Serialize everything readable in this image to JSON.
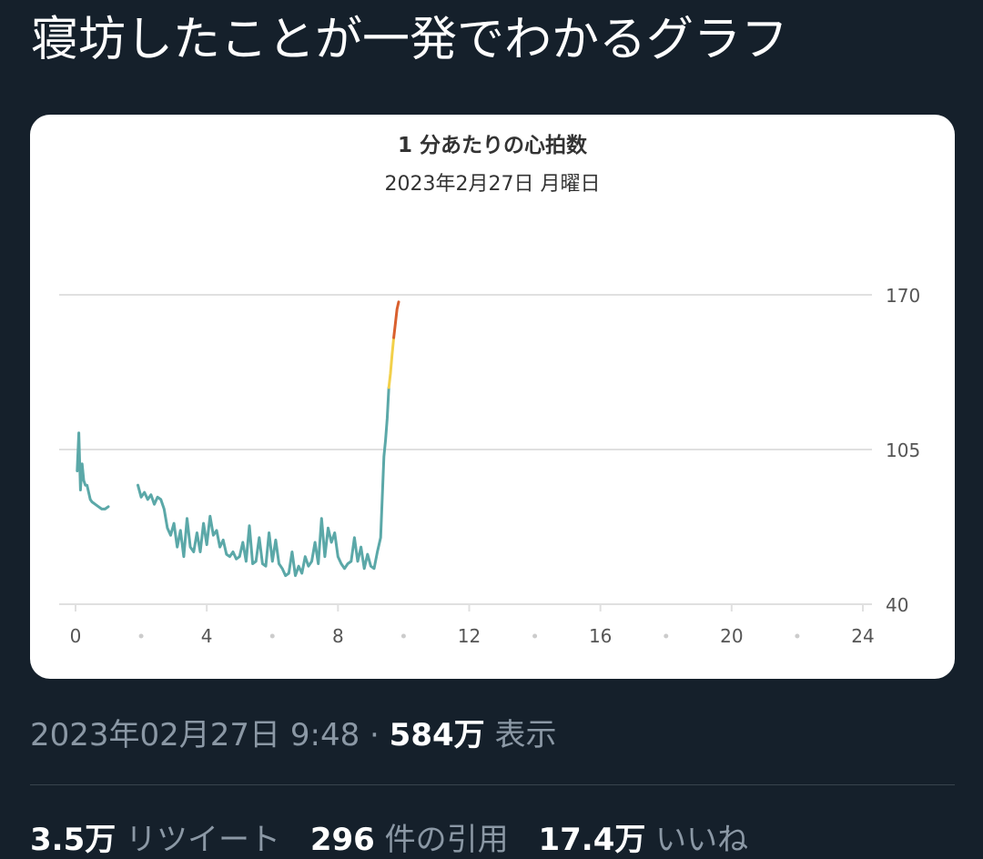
{
  "tweet": {
    "text": "寝坊したことが一発でわかるグラフ",
    "timestamp": "2023年02月27日 9:48",
    "separator": "·",
    "views_count": "584万",
    "views_label": "表示",
    "retweets_count": "3.5万",
    "retweets_label": "リツイート",
    "quotes_count": "296",
    "quotes_label": "件の引用",
    "likes_count": "17.4万",
    "likes_label": "いいね"
  },
  "chart_data": {
    "type": "line",
    "title": "1 分あたりの心拍数",
    "subtitle": "2023年2月27日 月曜日",
    "xlabel": "",
    "ylabel": "",
    "xlim": [
      0,
      24
    ],
    "ylim": [
      40,
      170
    ],
    "x_ticks": [
      "0",
      "4",
      "8",
      "12",
      "16",
      "20",
      "24"
    ],
    "y_ticks": [
      "170",
      "105",
      "40"
    ],
    "y_axis_position": "right",
    "grid": true,
    "legend": "none",
    "colors": {
      "line": "#5ba8a8",
      "elevated": "#f2d04a",
      "peak": "#d9602e",
      "grid": "#e0e0e0",
      "text": "#555555"
    },
    "series": [
      {
        "segment": 1,
        "x": [
          0.05,
          0.1,
          0.15,
          0.2,
          0.25,
          0.3,
          0.35,
          0.4,
          0.45,
          0.5,
          0.6,
          0.7,
          0.8,
          0.9,
          1.0
        ],
        "y": [
          96,
          112,
          88,
          99,
          92,
          90,
          90,
          87,
          84,
          83,
          82,
          81,
          80,
          80,
          81
        ]
      },
      {
        "segment": 2,
        "x": [
          1.9,
          2.0,
          2.1,
          2.2,
          2.3,
          2.4,
          2.5,
          2.6,
          2.7,
          2.8,
          2.9,
          3.0,
          3.1,
          3.2,
          3.3,
          3.4,
          3.5,
          3.6,
          3.7,
          3.8,
          3.9,
          4.0,
          4.1,
          4.2,
          4.3,
          4.4,
          4.5,
          4.6,
          4.7,
          4.8,
          4.9,
          5.0,
          5.1,
          5.2,
          5.3,
          5.4,
          5.5,
          5.6,
          5.7,
          5.8,
          5.9,
          6.0,
          6.1,
          6.2,
          6.3,
          6.4,
          6.5,
          6.6,
          6.7,
          6.8,
          6.9,
          7.0,
          7.1,
          7.2,
          7.3,
          7.4,
          7.5,
          7.6,
          7.7,
          7.8,
          7.9,
          8.0,
          8.1,
          8.2,
          8.3,
          8.4,
          8.5,
          8.6,
          8.7,
          8.8,
          8.9,
          9.0,
          9.1,
          9.2,
          9.3,
          9.4,
          9.45,
          9.5,
          9.55
        ],
        "y": [
          90,
          85,
          87,
          84,
          86,
          82,
          85,
          84,
          80,
          72,
          69,
          74,
          64,
          71,
          60,
          76,
          64,
          62,
          70,
          62,
          74,
          65,
          77,
          69,
          71,
          64,
          67,
          61,
          60,
          62,
          59,
          60,
          66,
          58,
          73,
          57,
          58,
          68,
          57,
          56,
          70,
          58,
          67,
          57,
          55,
          52,
          53,
          62,
          52,
          56,
          53,
          60,
          56,
          58,
          66,
          57,
          76,
          60,
          72,
          66,
          70,
          60,
          57,
          55,
          57,
          58,
          68,
          58,
          64,
          55,
          61,
          56,
          55,
          62,
          68,
          102,
          109,
          118,
          131
        ]
      },
      {
        "segment": 3,
        "x": [
          9.55,
          9.6,
          9.65,
          9.7
        ],
        "y": [
          131,
          137,
          145,
          152
        ],
        "color": "elevated"
      },
      {
        "segment": 4,
        "x": [
          9.7,
          9.75,
          9.8,
          9.85
        ],
        "y": [
          152,
          158,
          164,
          167
        ],
        "color": "peak"
      }
    ]
  }
}
